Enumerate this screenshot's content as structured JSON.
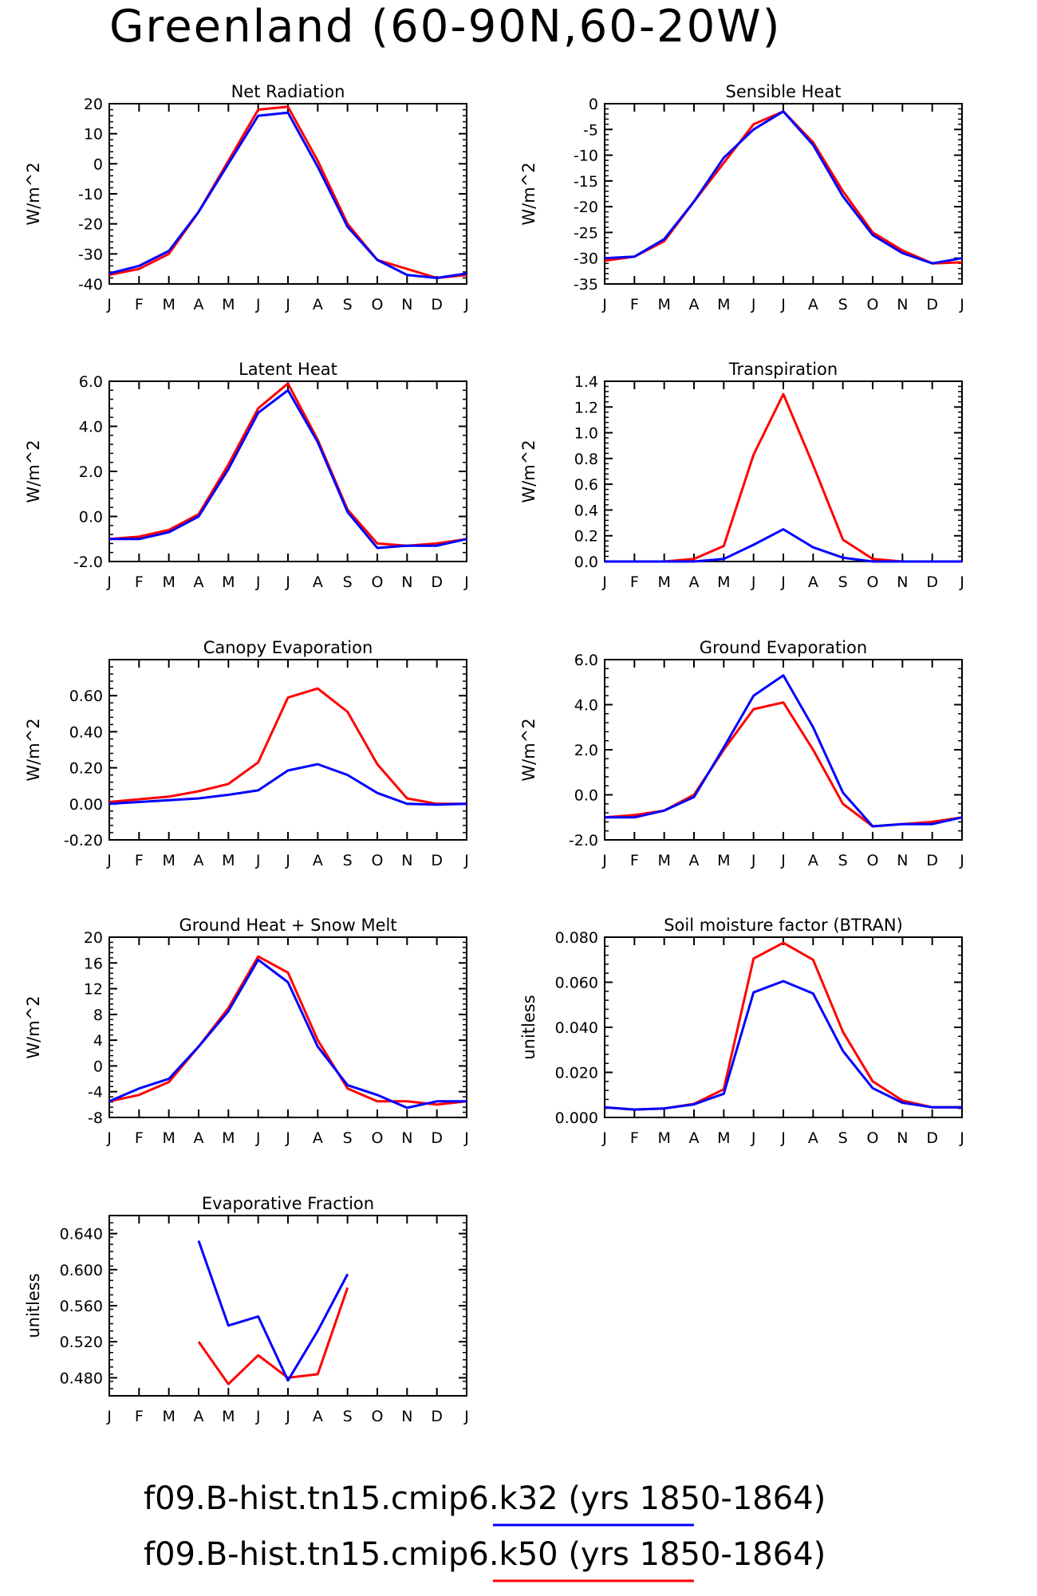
{
  "title": "Greenland (60-90N,60-20W)",
  "colors": {
    "red": "#ff0000",
    "blue": "#0000ff",
    "axis": "#000000"
  },
  "months": [
    "J",
    "F",
    "M",
    "A",
    "M",
    "J",
    "J",
    "A",
    "S",
    "O",
    "N",
    "D",
    "J"
  ],
  "legend": [
    {
      "label": "f09.B-hist.tn15.cmip6.k32 (yrs 1850-1864)",
      "color": "#0000ff"
    },
    {
      "label": "f09.B-hist.tn15.cmip6.k50 (yrs 1850-1864)",
      "color": "#ff0000"
    }
  ],
  "chart_data": [
    {
      "type": "line",
      "title": "Net Radiation",
      "ylabel": "W/m^2",
      "ylim": [
        -40,
        20
      ],
      "yticks": [
        20,
        10,
        0,
        -10,
        -20,
        -30,
        -40
      ],
      "ytick_labels": [
        "20",
        "10",
        "0",
        "-10",
        "-20",
        "-30",
        "-40"
      ],
      "x": [
        "J",
        "F",
        "M",
        "A",
        "M",
        "J",
        "J",
        "A",
        "S",
        "O",
        "N",
        "D",
        "J"
      ],
      "series": [
        {
          "color": "#ff0000",
          "values": [
            -37,
            -35,
            -30,
            -16,
            1,
            18,
            19,
            1,
            -20,
            -32,
            -35,
            -38,
            -37
          ]
        },
        {
          "color": "#0000ff",
          "values": [
            -36.5,
            -34,
            -29,
            -16,
            0,
            16,
            17,
            -1,
            -21,
            -32,
            -37,
            -38,
            -36.5
          ]
        }
      ]
    },
    {
      "type": "line",
      "title": "Sensible Heat",
      "ylabel": "W/m^2",
      "ylim": [
        -35,
        0
      ],
      "yticks": [
        0,
        -5,
        -10,
        -15,
        -20,
        -25,
        -30,
        -35
      ],
      "ytick_labels": [
        "0",
        "-5",
        "-10",
        "-15",
        "-20",
        "-25",
        "-30",
        "-35"
      ],
      "x": [
        "J",
        "F",
        "M",
        "A",
        "M",
        "J",
        "J",
        "A",
        "S",
        "O",
        "N",
        "D",
        "J"
      ],
      "series": [
        {
          "color": "#ff0000",
          "values": [
            -30.5,
            -29.7,
            -26.7,
            -19,
            -11.5,
            -4,
            -1.5,
            -7.5,
            -17,
            -25,
            -28.5,
            -31,
            -30.8
          ]
        },
        {
          "color": "#0000ff",
          "values": [
            -30,
            -29.7,
            -26.3,
            -19,
            -10.5,
            -5,
            -1.5,
            -8,
            -18,
            -25.5,
            -29,
            -31,
            -30
          ]
        }
      ]
    },
    {
      "type": "line",
      "title": "Latent Heat",
      "ylabel": "W/m^2",
      "ylim": [
        -2.0,
        6.0
      ],
      "yticks": [
        6,
        4,
        2,
        0,
        -2
      ],
      "ytick_labels": [
        "6.0",
        "4.0",
        "2.0",
        "0.0",
        "-2.0"
      ],
      "x": [
        "J",
        "F",
        "M",
        "A",
        "M",
        "J",
        "J",
        "A",
        "S",
        "O",
        "N",
        "D",
        "J"
      ],
      "series": [
        {
          "color": "#ff0000",
          "values": [
            -1.0,
            -0.9,
            -0.6,
            0.1,
            2.3,
            4.8,
            5.9,
            3.4,
            0.3,
            -1.2,
            -1.3,
            -1.2,
            -1.0
          ]
        },
        {
          "color": "#0000ff",
          "values": [
            -1.0,
            -1.0,
            -0.7,
            0.0,
            2.1,
            4.6,
            5.6,
            3.3,
            0.2,
            -1.4,
            -1.3,
            -1.3,
            -1.0
          ]
        }
      ]
    },
    {
      "type": "line",
      "title": "Transpiration",
      "ylabel": "W/m^2",
      "ylim": [
        0,
        1.4
      ],
      "yticks": [
        1.4,
        1.2,
        1.0,
        0.8,
        0.6,
        0.4,
        0.2,
        0.0
      ],
      "ytick_labels": [
        "1.4",
        "1.2",
        "1.0",
        "0.8",
        "0.6",
        "0.4",
        "0.2",
        "0.0"
      ],
      "x": [
        "J",
        "F",
        "M",
        "A",
        "M",
        "J",
        "J",
        "A",
        "S",
        "O",
        "N",
        "D",
        "J"
      ],
      "series": [
        {
          "color": "#ff0000",
          "values": [
            0.0,
            0.0,
            0.0,
            0.02,
            0.12,
            0.83,
            1.3,
            0.75,
            0.17,
            0.02,
            0.0,
            0.0,
            0.0
          ]
        },
        {
          "color": "#0000ff",
          "values": [
            0.0,
            0.0,
            0.0,
            0.0,
            0.02,
            0.13,
            0.25,
            0.11,
            0.03,
            0.0,
            0.0,
            0.0,
            0.0
          ]
        }
      ]
    },
    {
      "type": "line",
      "title": "Canopy Evaporation",
      "ylabel": "W/m^2",
      "ylim": [
        -0.2,
        0.8
      ],
      "yticks": [
        0.6,
        0.4,
        0.2,
        0.0,
        -0.2
      ],
      "ytick_labels": [
        "0.60",
        "0.40",
        "0.20",
        "0.00",
        "-0.20"
      ],
      "x": [
        "J",
        "F",
        "M",
        "A",
        "M",
        "J",
        "J",
        "A",
        "S",
        "O",
        "N",
        "D",
        "J"
      ],
      "series": [
        {
          "color": "#ff0000",
          "values": [
            0.01,
            0.025,
            0.04,
            0.07,
            0.11,
            0.23,
            0.59,
            0.64,
            0.51,
            0.22,
            0.03,
            0.0,
            0.0
          ]
        },
        {
          "color": "#0000ff",
          "values": [
            0.0,
            0.01,
            0.02,
            0.03,
            0.05,
            0.075,
            0.185,
            0.22,
            0.16,
            0.06,
            0.0,
            -0.005,
            0.0
          ]
        }
      ]
    },
    {
      "type": "line",
      "title": "Ground Evaporation",
      "ylabel": "W/m^2",
      "ylim": [
        -2.0,
        6.0
      ],
      "yticks": [
        6,
        4,
        2,
        0,
        -2
      ],
      "ytick_labels": [
        "6.0",
        "4.0",
        "2.0",
        "0.0",
        "-2.0"
      ],
      "x": [
        "J",
        "F",
        "M",
        "A",
        "M",
        "J",
        "J",
        "A",
        "S",
        "O",
        "N",
        "D",
        "J"
      ],
      "series": [
        {
          "color": "#ff0000",
          "values": [
            -1.0,
            -0.9,
            -0.7,
            0.0,
            2.0,
            3.8,
            4.1,
            2.0,
            -0.4,
            -1.4,
            -1.3,
            -1.2,
            -1.0
          ]
        },
        {
          "color": "#0000ff",
          "values": [
            -1.0,
            -1.0,
            -0.7,
            -0.1,
            2.1,
            4.4,
            5.3,
            3.0,
            0.1,
            -1.4,
            -1.3,
            -1.3,
            -1.0
          ]
        }
      ]
    },
    {
      "type": "line",
      "title": "Ground Heat + Snow Melt",
      "ylabel": "W/m^2",
      "ylim": [
        -8,
        20
      ],
      "yticks": [
        20,
        16,
        12,
        8,
        4,
        0,
        -4,
        -8
      ],
      "ytick_labels": [
        "20",
        "16",
        "12",
        "8",
        "4",
        "0",
        "-4",
        "-8"
      ],
      "x": [
        "J",
        "F",
        "M",
        "A",
        "M",
        "J",
        "J",
        "A",
        "S",
        "O",
        "N",
        "D",
        "J"
      ],
      "series": [
        {
          "color": "#ff0000",
          "values": [
            -5.5,
            -4.5,
            -2.5,
            3,
            9,
            17,
            14.5,
            4,
            -3.5,
            -5.5,
            -5.5,
            -6,
            -5.5
          ]
        },
        {
          "color": "#0000ff",
          "values": [
            -5.5,
            -3.5,
            -2,
            3,
            8.5,
            16.5,
            13,
            3,
            -3,
            -4.5,
            -6.5,
            -5.5,
            -5.5
          ]
        }
      ]
    },
    {
      "type": "line",
      "title": "Soil moisture factor (BTRAN)",
      "ylabel": "unitless",
      "ylim": [
        0.0,
        0.08
      ],
      "yticks": [
        0.08,
        0.06,
        0.04,
        0.02,
        0.0
      ],
      "ytick_labels": [
        "0.080",
        "0.060",
        "0.040",
        "0.020",
        "0.000"
      ],
      "x": [
        "J",
        "F",
        "M",
        "A",
        "M",
        "J",
        "J",
        "A",
        "S",
        "O",
        "N",
        "D",
        "J"
      ],
      "series": [
        {
          "color": "#ff0000",
          "values": [
            0.0045,
            0.0035,
            0.004,
            0.006,
            0.0125,
            0.0705,
            0.0775,
            0.07,
            0.038,
            0.016,
            0.0075,
            0.0045,
            0.0045
          ]
        },
        {
          "color": "#0000ff",
          "values": [
            0.0045,
            0.0035,
            0.004,
            0.0058,
            0.0105,
            0.0555,
            0.0605,
            0.055,
            0.0295,
            0.013,
            0.0065,
            0.0045,
            0.0045
          ]
        }
      ]
    },
    {
      "type": "line",
      "title": "Evaporative Fraction",
      "ylabel": "unitless",
      "ylim": [
        0.46,
        0.66
      ],
      "yticks": [
        0.64,
        0.6,
        0.56,
        0.52,
        0.48
      ],
      "ytick_labels": [
        "0.640",
        "0.600",
        "0.560",
        "0.520",
        "0.480"
      ],
      "x": [
        "J",
        "F",
        "M",
        "A",
        "M",
        "J",
        "J",
        "A",
        "S",
        "O",
        "N",
        "D",
        "J"
      ],
      "series": [
        {
          "color": "#ff0000",
          "values": [
            null,
            null,
            null,
            0.52,
            0.473,
            0.505,
            0.48,
            0.484,
            0.58,
            null,
            null,
            null,
            null
          ]
        },
        {
          "color": "#0000ff",
          "values": [
            null,
            null,
            null,
            0.632,
            0.538,
            0.548,
            0.477,
            0.532,
            0.595,
            null,
            null,
            null,
            null
          ]
        }
      ]
    }
  ]
}
